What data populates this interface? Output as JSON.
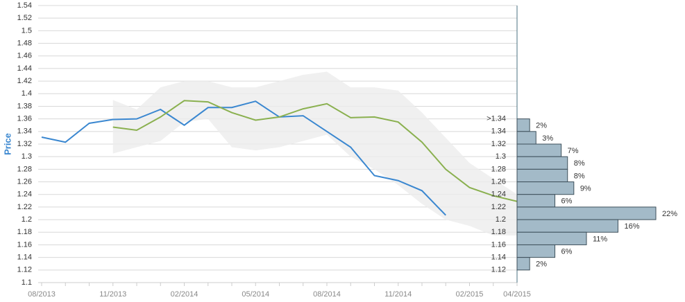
{
  "chart_data": [
    {
      "type": "line",
      "y_label": "Price",
      "categories": [
        "08/2013",
        null,
        null,
        "11/2013",
        null,
        null,
        "02/2014",
        null,
        null,
        "05/2014",
        null,
        null,
        "08/2014",
        null,
        null,
        "11/2014",
        null,
        null,
        "02/2015",
        null,
        "04/2015"
      ],
      "series": [
        {
          "color": "#3a87d0",
          "values": [
            1.331,
            1.323,
            1.353,
            1.359,
            1.36,
            1.375,
            1.35,
            1.378,
            1.378,
            1.388,
            1.363,
            1.365,
            1.34,
            1.315,
            1.27,
            1.262,
            1.246,
            1.207,
            null,
            null,
            null
          ]
        },
        {
          "color": "#8ab04f",
          "values": [
            null,
            null,
            null,
            1.347,
            1.342,
            1.363,
            1.389,
            1.387,
            1.37,
            1.358,
            1.363,
            1.376,
            1.384,
            1.362,
            1.363,
            1.355,
            1.323,
            1.28,
            1.251,
            1.238,
            1.229
          ]
        }
      ],
      "band": {
        "color": "#ececec",
        "upper": [
          null,
          null,
          null,
          1.39,
          1.375,
          1.41,
          1.42,
          1.42,
          1.41,
          1.41,
          1.42,
          1.43,
          1.435,
          1.41,
          1.41,
          1.405,
          1.37,
          1.33,
          1.29,
          1.265,
          1.24
        ],
        "lower": [
          null,
          null,
          null,
          1.305,
          1.315,
          1.325,
          1.355,
          1.36,
          1.315,
          1.31,
          1.315,
          1.325,
          1.335,
          1.3,
          1.28,
          1.255,
          1.225,
          1.2,
          1.19,
          1.175,
          1.175
        ]
      },
      "ylim": [
        1.1,
        1.54
      ],
      "yticks": [
        1.1,
        1.12,
        1.14,
        1.16,
        1.18,
        1.2,
        1.22,
        1.24,
        1.26,
        1.28,
        1.3,
        1.32,
        1.34,
        1.36,
        1.38,
        1.4,
        1.42,
        1.44,
        1.46,
        1.48,
        1.5,
        1.52,
        1.54
      ],
      "grid": true
    },
    {
      "type": "histogram",
      "orientation": "horizontal",
      "color": "#a3bac8",
      "ylim": [
        1.1,
        1.54
      ],
      "bins": [
        {
          "value": 1.36,
          "label": ">1.34"
        },
        1.34,
        1.32,
        1.3,
        1.28,
        1.26,
        1.24,
        1.22,
        1.2,
        1.18,
        1.16,
        1.14,
        1.12
      ],
      "values": [
        2,
        3,
        7,
        8,
        8,
        9,
        6,
        22,
        16,
        11,
        6,
        2
      ],
      "value_labels": [
        "2%",
        "3%",
        "7%",
        "8%",
        "8%",
        "9%",
        "6%",
        "22%",
        "16%",
        "11%",
        "6%",
        "2%"
      ]
    }
  ]
}
